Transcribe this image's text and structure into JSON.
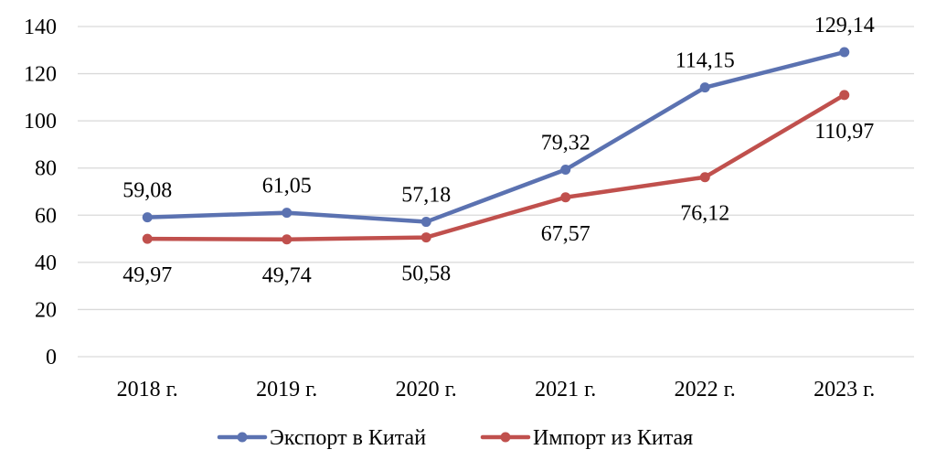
{
  "chart_data": {
    "type": "line",
    "title": "",
    "xlabel": "",
    "ylabel": "",
    "categories": [
      "2018 г.",
      "2019 г.",
      "2020 г.",
      "2021 г.",
      "2022 г.",
      "2023 г."
    ],
    "ylim": [
      0,
      140
    ],
    "yticks": [
      0,
      20,
      40,
      60,
      80,
      100,
      120,
      140
    ],
    "grid": true,
    "legend_position": "bottom",
    "series": [
      {
        "name": "Экспорт в Китай",
        "color": "#5b72b1",
        "values": [
          59.08,
          61.05,
          57.18,
          79.32,
          114.15,
          129.14
        ],
        "labels": [
          "59,08",
          "61,05",
          "57,18",
          "79,32",
          "114,15",
          "129,14"
        ],
        "label_position": "above"
      },
      {
        "name": "Импорт из Китая",
        "color": "#c0504d",
        "values": [
          49.97,
          49.74,
          50.58,
          67.57,
          76.12,
          110.97
        ],
        "labels": [
          "49,97",
          "49,74",
          "50,58",
          "67,57",
          "76,12",
          "110,97"
        ],
        "label_position": "below"
      }
    ]
  }
}
